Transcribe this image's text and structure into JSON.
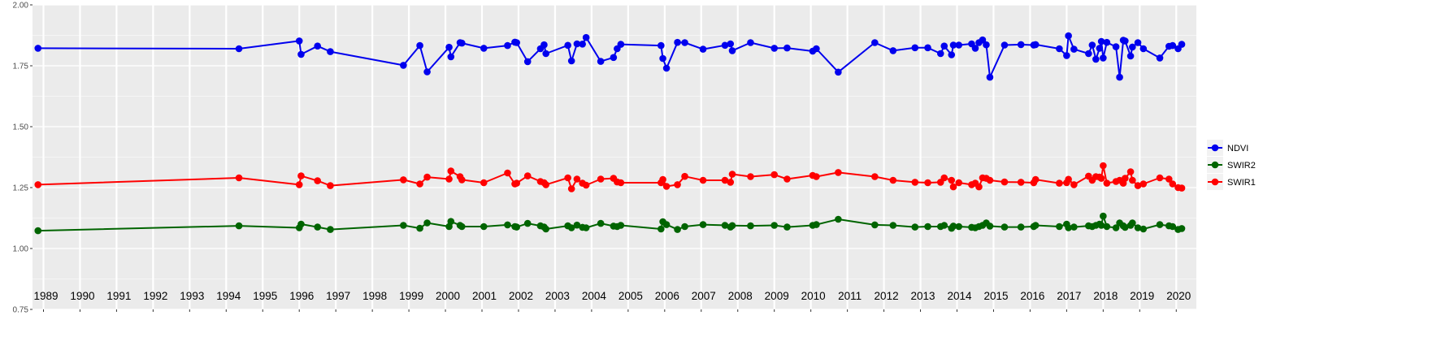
{
  "chart_data": {
    "type": "line",
    "title": "",
    "xlabel": "",
    "ylabel": "",
    "ylim": [
      0.75,
      2.0
    ],
    "y_ticks": [
      "0.75",
      "1.00",
      "1.25",
      "1.50",
      "1.75",
      "2.00"
    ],
    "xlim": [
      1988.7,
      2020.55
    ],
    "x_ticks": [
      "1989",
      "1990",
      "1991",
      "1992",
      "1993",
      "1994",
      "1995",
      "1996",
      "1997",
      "1998",
      "1999",
      "2000",
      "2001",
      "2002",
      "2003",
      "2004",
      "2005",
      "2006",
      "2007",
      "2008",
      "2009",
      "2010",
      "2011",
      "2012",
      "2013",
      "2014",
      "2015",
      "2016",
      "2017",
      "2018",
      "2019",
      "2020"
    ],
    "x_tick_labels_inside_panel": true,
    "grid": true,
    "legend_position": "right",
    "colors": {
      "panel": "#ebebeb",
      "grid": "#ffffff",
      "NDVI": "#0000ee",
      "SWIR2": "#006400",
      "SWIR1": "#ff0000"
    },
    "legend": [
      {
        "key": "NDVI",
        "label": "NDVI",
        "color": "#0000ee"
      },
      {
        "key": "SWIR2",
        "label": "SWIR2",
        "color": "#006400"
      },
      {
        "key": "SWIR1",
        "label": "SWIR1",
        "color": "#ff0000"
      }
    ],
    "x": [
      1988.85,
      1994.35,
      1996.0,
      1996.05,
      1996.5,
      1996.85,
      1998.85,
      1999.3,
      1999.5,
      2000.1,
      2000.15,
      2000.4,
      2000.45,
      2001.05,
      2001.7,
      2001.9,
      2001.95,
      2002.25,
      2002.6,
      2002.7,
      2002.75,
      2003.35,
      2003.45,
      2003.6,
      2003.75,
      2003.85,
      2004.25,
      2004.6,
      2004.7,
      2004.8,
      2005.9,
      2005.95,
      2006.05,
      2006.35,
      2006.55,
      2007.05,
      2007.65,
      2007.8,
      2007.85,
      2008.35,
      2009.0,
      2009.35,
      2010.05,
      2010.15,
      2010.75,
      2011.75,
      2012.25,
      2012.85,
      2013.2,
      2013.55,
      2013.65,
      2013.85,
      2013.9,
      2014.05,
      2014.4,
      2014.5,
      2014.6,
      2014.7,
      2014.8,
      2014.9,
      2015.3,
      2015.75,
      2016.1,
      2016.15,
      2016.8,
      2017.0,
      2017.05,
      2017.2,
      2017.6,
      2017.7,
      2017.8,
      2017.9,
      2017.95,
      2018.0,
      2018.1,
      2018.35,
      2018.45,
      2018.55,
      2018.6,
      2018.75,
      2018.8,
      2018.95,
      2019.1,
      2019.55,
      2019.8,
      2019.9,
      2020.05,
      2020.15
    ],
    "series": [
      {
        "name": "NDVI",
        "values": [
          1.822,
          1.82,
          1.852,
          1.797,
          1.831,
          1.808,
          1.752,
          1.833,
          1.725,
          1.826,
          1.787,
          1.845,
          1.843,
          1.822,
          1.833,
          1.847,
          1.845,
          1.767,
          1.82,
          1.836,
          1.8,
          1.834,
          1.77,
          1.84,
          1.839,
          1.866,
          1.768,
          1.784,
          1.82,
          1.838,
          1.833,
          1.78,
          1.74,
          1.846,
          1.845,
          1.818,
          1.834,
          1.84,
          1.812,
          1.845,
          1.822,
          1.823,
          1.81,
          1.82,
          1.724,
          1.845,
          1.812,
          1.824,
          1.824,
          1.8,
          1.831,
          1.795,
          1.835,
          1.835,
          1.84,
          1.822,
          1.845,
          1.856,
          1.836,
          1.703,
          1.835,
          1.837,
          1.835,
          1.837,
          1.82,
          1.792,
          1.873,
          1.818,
          1.8,
          1.835,
          1.777,
          1.822,
          1.85,
          1.782,
          1.846,
          1.828,
          1.703,
          1.855,
          1.852,
          1.79,
          1.827,
          1.845,
          1.82,
          1.782,
          1.83,
          1.833,
          1.82,
          1.838
        ]
      },
      {
        "name": "SWIR2",
        "values": [
          1.073,
          1.093,
          1.085,
          1.1,
          1.088,
          1.078,
          1.095,
          1.083,
          1.105,
          1.09,
          1.111,
          1.095,
          1.09,
          1.09,
          1.097,
          1.09,
          1.088,
          1.103,
          1.093,
          1.088,
          1.08,
          1.093,
          1.085,
          1.096,
          1.087,
          1.085,
          1.103,
          1.092,
          1.09,
          1.095,
          1.08,
          1.11,
          1.098,
          1.078,
          1.09,
          1.098,
          1.095,
          1.088,
          1.094,
          1.093,
          1.095,
          1.088,
          1.095,
          1.098,
          1.12,
          1.097,
          1.095,
          1.088,
          1.09,
          1.09,
          1.095,
          1.083,
          1.092,
          1.09,
          1.087,
          1.085,
          1.09,
          1.095,
          1.105,
          1.092,
          1.088,
          1.088,
          1.09,
          1.095,
          1.09,
          1.1,
          1.085,
          1.088,
          1.093,
          1.09,
          1.095,
          1.1,
          1.095,
          1.133,
          1.09,
          1.085,
          1.105,
          1.093,
          1.087,
          1.095,
          1.105,
          1.085,
          1.08,
          1.098,
          1.093,
          1.09,
          1.078,
          1.082
        ]
      },
      {
        "name": "SWIR1",
        "values": [
          1.262,
          1.29,
          1.262,
          1.298,
          1.278,
          1.258,
          1.282,
          1.265,
          1.293,
          1.285,
          1.318,
          1.295,
          1.282,
          1.27,
          1.31,
          1.265,
          1.268,
          1.298,
          1.275,
          1.27,
          1.262,
          1.29,
          1.245,
          1.285,
          1.268,
          1.26,
          1.285,
          1.288,
          1.273,
          1.27,
          1.27,
          1.283,
          1.255,
          1.262,
          1.296,
          1.28,
          1.28,
          1.272,
          1.305,
          1.295,
          1.303,
          1.285,
          1.3,
          1.295,
          1.312,
          1.295,
          1.28,
          1.272,
          1.27,
          1.272,
          1.29,
          1.28,
          1.253,
          1.27,
          1.262,
          1.268,
          1.253,
          1.29,
          1.288,
          1.28,
          1.273,
          1.272,
          1.27,
          1.283,
          1.268,
          1.27,
          1.284,
          1.262,
          1.297,
          1.28,
          1.295,
          1.293,
          1.288,
          1.34,
          1.268,
          1.275,
          1.28,
          1.268,
          1.288,
          1.315,
          1.28,
          1.258,
          1.265,
          1.29,
          1.285,
          1.265,
          1.25,
          1.248
        ]
      }
    ]
  }
}
